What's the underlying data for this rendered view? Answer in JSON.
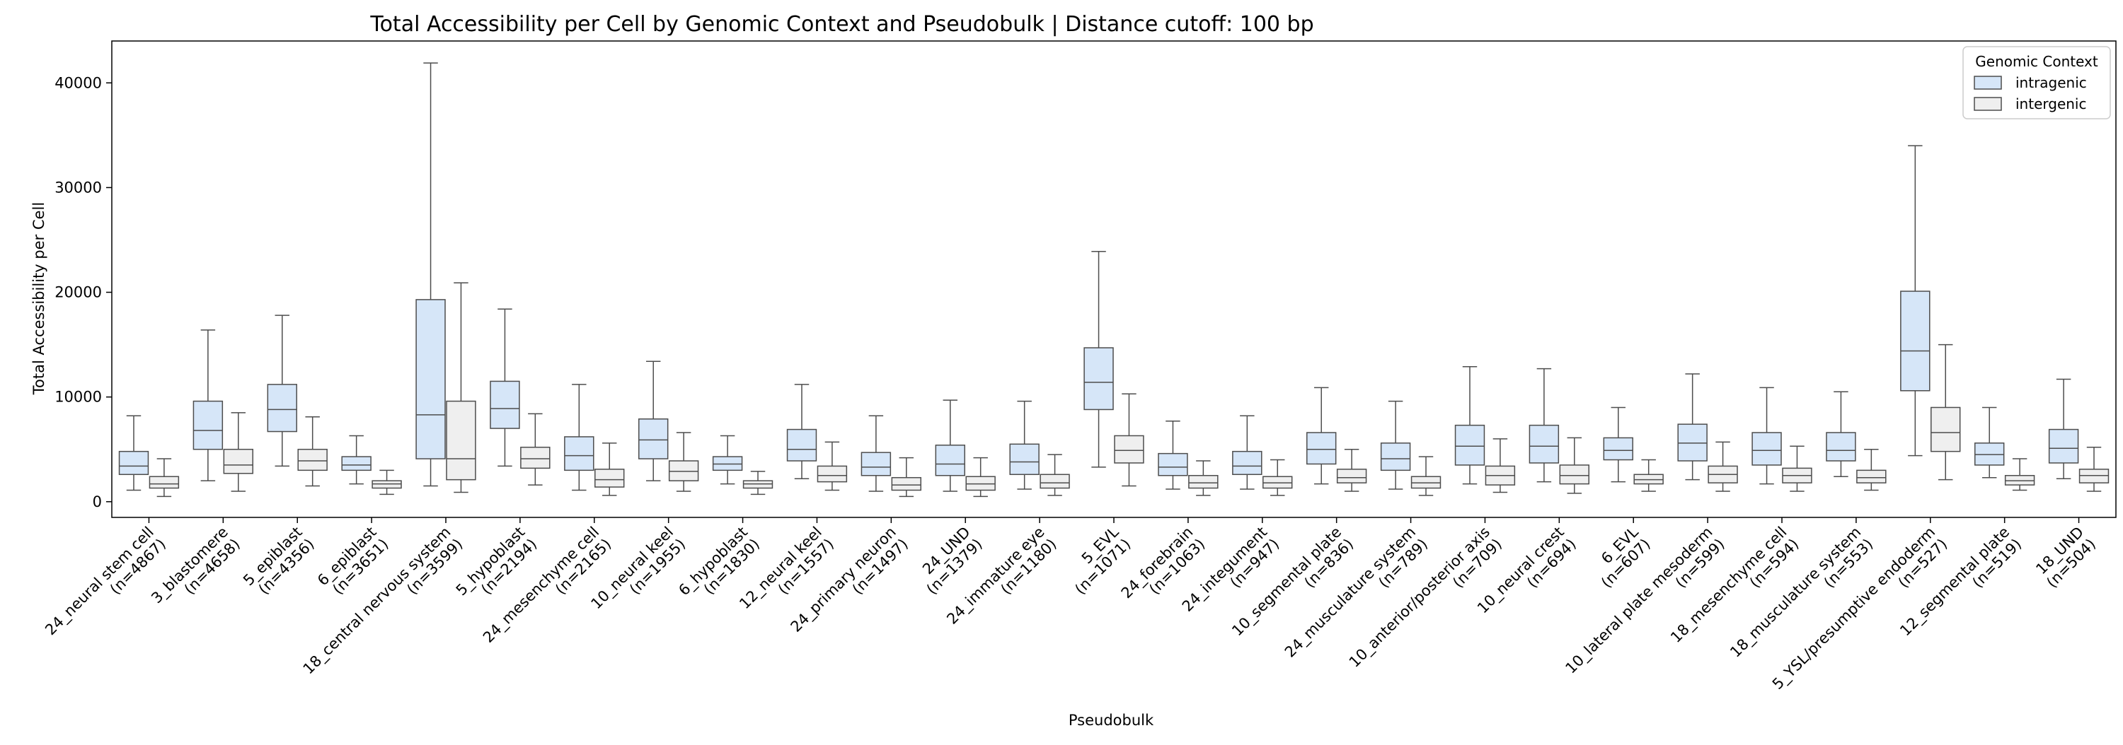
{
  "chart_data": {
    "type": "box",
    "title": "Total Accessibility per Cell by Genomic Context and Pseudobulk | Distance cutoff: 100 bp",
    "xlabel": "Pseudobulk",
    "ylabel": "Total Accessibility per Cell",
    "ylim": [
      -1500,
      44000
    ],
    "yticks": [
      0,
      10000,
      20000,
      30000,
      40000
    ],
    "grid": false,
    "legend": {
      "title": "Genomic Context",
      "placement": "top-right",
      "entries": [
        {
          "name": "intragenic",
          "color": "#d6e6f8"
        },
        {
          "name": "intergenic",
          "color": "#efefef"
        }
      ]
    },
    "categories": [
      "24_neural stem cell\n(n=4867)",
      "3_blastomere\n(n=4658)",
      "5_epiblast\n(n=4356)",
      "6_epiblast\n(n=3651)",
      "18_central nervous system\n(n=3599)",
      "5_hypoblast\n(n=2194)",
      "24_mesenchyme cell\n(n=2165)",
      "10_neural keel\n(n=1955)",
      "6_hypoblast\n(n=1830)",
      "12_neural keel\n(n=1557)",
      "24_primary neuron\n(n=1497)",
      "24_UND\n(n=1379)",
      "24_immature eye\n(n=1180)",
      "5_EVL\n(n=1071)",
      "24_forebrain\n(n=1063)",
      "24_integument\n(n=947)",
      "10_segmental plate\n(n=836)",
      "24_musculature system\n(n=789)",
      "10_anterior/posterior axis\n(n=709)",
      "10_neural crest\n(n=694)",
      "6_EVL\n(n=607)",
      "10_lateral plate mesoderm\n(n=599)",
      "18_mesenchyme cell\n(n=594)",
      "18_musculature system\n(n=553)",
      "5_YSL/presumptive endoderm\n(n=527)",
      "12_segmental plate\n(n=519)",
      "18_UND\n(n=504)"
    ],
    "series": [
      {
        "name": "intragenic",
        "color": "#d6e6f8",
        "boxes": [
          {
            "whislo": 1100,
            "q1": 2600,
            "med": 3400,
            "q3": 4800,
            "whishi": 8200
          },
          {
            "whislo": 2000,
            "q1": 5000,
            "med": 6800,
            "q3": 9600,
            "whishi": 16400
          },
          {
            "whislo": 3400,
            "q1": 6700,
            "med": 8800,
            "q3": 11200,
            "whishi": 17800
          },
          {
            "whislo": 1700,
            "q1": 3000,
            "med": 3500,
            "q3": 4300,
            "whishi": 6300
          },
          {
            "whislo": 1500,
            "q1": 4100,
            "med": 8300,
            "q3": 19300,
            "whishi": 41900
          },
          {
            "whislo": 3400,
            "q1": 7000,
            "med": 8900,
            "q3": 11500,
            "whishi": 18400
          },
          {
            "whislo": 1100,
            "q1": 3000,
            "med": 4400,
            "q3": 6200,
            "whishi": 11200
          },
          {
            "whislo": 2000,
            "q1": 4100,
            "med": 5900,
            "q3": 7900,
            "whishi": 13400
          },
          {
            "whislo": 1700,
            "q1": 3000,
            "med": 3600,
            "q3": 4300,
            "whishi": 6300
          },
          {
            "whislo": 2200,
            "q1": 3900,
            "med": 5000,
            "q3": 6900,
            "whishi": 11200
          },
          {
            "whislo": 1000,
            "q1": 2500,
            "med": 3300,
            "q3": 4700,
            "whishi": 8200
          },
          {
            "whislo": 1000,
            "q1": 2500,
            "med": 3600,
            "q3": 5400,
            "whishi": 9700
          },
          {
            "whislo": 1200,
            "q1": 2600,
            "med": 3800,
            "q3": 5500,
            "whishi": 9600
          },
          {
            "whislo": 3300,
            "q1": 8800,
            "med": 11400,
            "q3": 14700,
            "whishi": 23900
          },
          {
            "whislo": 1200,
            "q1": 2500,
            "med": 3300,
            "q3": 4600,
            "whishi": 7700
          },
          {
            "whislo": 1200,
            "q1": 2600,
            "med": 3400,
            "q3": 4800,
            "whishi": 8200
          },
          {
            "whislo": 1700,
            "q1": 3600,
            "med": 5000,
            "q3": 6600,
            "whishi": 10900
          },
          {
            "whislo": 1200,
            "q1": 3000,
            "med": 4100,
            "q3": 5600,
            "whishi": 9600
          },
          {
            "whislo": 1700,
            "q1": 3500,
            "med": 5300,
            "q3": 7300,
            "whishi": 12900
          },
          {
            "whislo": 1900,
            "q1": 3700,
            "med": 5300,
            "q3": 7300,
            "whishi": 12700
          },
          {
            "whislo": 1900,
            "q1": 4000,
            "med": 4900,
            "q3": 6100,
            "whishi": 9000
          },
          {
            "whislo": 2100,
            "q1": 3900,
            "med": 5600,
            "q3": 7400,
            "whishi": 12200
          },
          {
            "whislo": 1700,
            "q1": 3500,
            "med": 4900,
            "q3": 6600,
            "whishi": 10900
          },
          {
            "whislo": 2400,
            "q1": 3900,
            "med": 4900,
            "q3": 6600,
            "whishi": 10500
          },
          {
            "whislo": 4400,
            "q1": 10600,
            "med": 14400,
            "q3": 20100,
            "whishi": 34000
          },
          {
            "whislo": 2300,
            "q1": 3500,
            "med": 4500,
            "q3": 5600,
            "whishi": 9000
          },
          {
            "whislo": 2200,
            "q1": 3700,
            "med": 5100,
            "q3": 6900,
            "whishi": 11700
          }
        ]
      },
      {
        "name": "intergenic",
        "color": "#efefef",
        "boxes": [
          {
            "whislo": 500,
            "q1": 1300,
            "med": 1700,
            "q3": 2400,
            "whishi": 4100
          },
          {
            "whislo": 1000,
            "q1": 2700,
            "med": 3500,
            "q3": 5000,
            "whishi": 8500
          },
          {
            "whislo": 1500,
            "q1": 3000,
            "med": 3900,
            "q3": 5000,
            "whishi": 8100
          },
          {
            "whislo": 700,
            "q1": 1300,
            "med": 1700,
            "q3": 2000,
            "whishi": 3000
          },
          {
            "whislo": 900,
            "q1": 2100,
            "med": 4100,
            "q3": 9600,
            "whishi": 20900
          },
          {
            "whislo": 1600,
            "q1": 3200,
            "med": 4100,
            "q3": 5200,
            "whishi": 8400
          },
          {
            "whislo": 600,
            "q1": 1400,
            "med": 2100,
            "q3": 3100,
            "whishi": 5600
          },
          {
            "whislo": 1000,
            "q1": 2000,
            "med": 2900,
            "q3": 3900,
            "whishi": 6600
          },
          {
            "whislo": 700,
            "q1": 1300,
            "med": 1700,
            "q3": 2000,
            "whishi": 2900
          },
          {
            "whislo": 1100,
            "q1": 1900,
            "med": 2500,
            "q3": 3400,
            "whishi": 5700
          },
          {
            "whislo": 500,
            "q1": 1100,
            "med": 1600,
            "q3": 2300,
            "whishi": 4200
          },
          {
            "whislo": 500,
            "q1": 1100,
            "med": 1700,
            "q3": 2400,
            "whishi": 4200
          },
          {
            "whislo": 600,
            "q1": 1300,
            "med": 1800,
            "q3": 2600,
            "whishi": 4500
          },
          {
            "whislo": 1500,
            "q1": 3700,
            "med": 4900,
            "q3": 6300,
            "whishi": 10300
          },
          {
            "whislo": 600,
            "q1": 1300,
            "med": 1800,
            "q3": 2500,
            "whishi": 3900
          },
          {
            "whislo": 600,
            "q1": 1300,
            "med": 1800,
            "q3": 2400,
            "whishi": 4000
          },
          {
            "whislo": 1000,
            "q1": 1800,
            "med": 2300,
            "q3": 3100,
            "whishi": 5000
          },
          {
            "whislo": 600,
            "q1": 1300,
            "med": 1800,
            "q3": 2400,
            "whishi": 4300
          },
          {
            "whislo": 900,
            "q1": 1600,
            "med": 2500,
            "q3": 3400,
            "whishi": 6000
          },
          {
            "whislo": 800,
            "q1": 1700,
            "med": 2500,
            "q3": 3500,
            "whishi": 6100
          },
          {
            "whislo": 1000,
            "q1": 1700,
            "med": 2100,
            "q3": 2600,
            "whishi": 4000
          },
          {
            "whislo": 1000,
            "q1": 1800,
            "med": 2600,
            "q3": 3400,
            "whishi": 5700
          },
          {
            "whislo": 1000,
            "q1": 1800,
            "med": 2500,
            "q3": 3200,
            "whishi": 5300
          },
          {
            "whislo": 1100,
            "q1": 1800,
            "med": 2300,
            "q3": 3000,
            "whishi": 5000
          },
          {
            "whislo": 2100,
            "q1": 4800,
            "med": 6600,
            "q3": 9000,
            "whishi": 15000
          },
          {
            "whislo": 1100,
            "q1": 1600,
            "med": 2000,
            "q3": 2500,
            "whishi": 4100
          },
          {
            "whislo": 1000,
            "q1": 1800,
            "med": 2500,
            "q3": 3100,
            "whishi": 5200
          }
        ]
      }
    ]
  }
}
